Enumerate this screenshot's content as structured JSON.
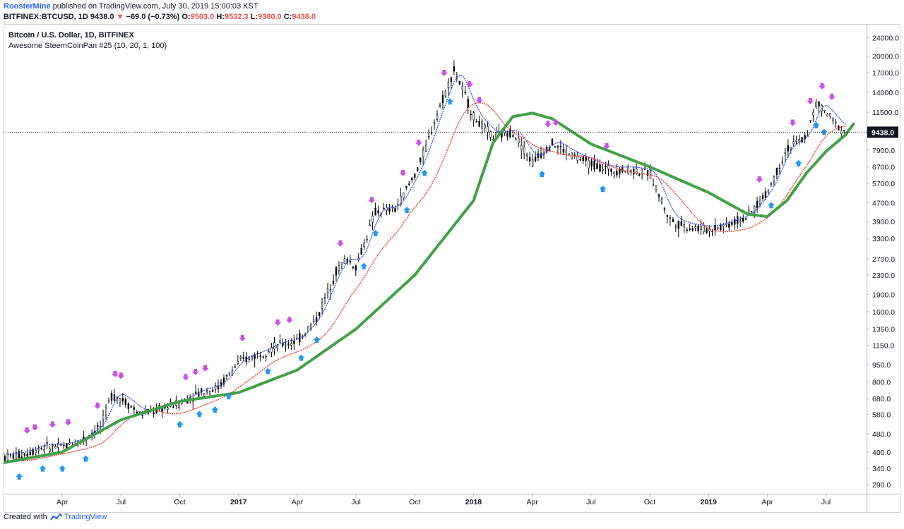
{
  "header": {
    "author": "RoosterMine",
    "published_text": "published on TradingView.com, July 30, 2019 15:00:03 KST",
    "symbol": "BITFINEX:BTCUSD, 1D",
    "last": "9438.0",
    "change": "−69.0 (−0.73%)",
    "open_label": "O:",
    "open": "9503.0",
    "high_label": "H:",
    "high": "9532.3",
    "low_label": "L:",
    "low": "9380.0",
    "close_label": "C:",
    "close": "9438.0"
  },
  "legend": {
    "title": "Bitcoin / U.S. Dollar, 1D, BITFINEX",
    "indicator": "Awesome SteemCoinPan #25 (10, 20, 1, 100)"
  },
  "footer": {
    "created_with": "Created with",
    "brand": "TradingView"
  },
  "colors": {
    "candles": "#000000",
    "blue_line": "#3f51f5",
    "red_line": "#f44336",
    "green_line": "#43a047",
    "buy_arrow": "#2196f3",
    "sell_arrow": "#c850e8",
    "price_line": "#131722",
    "last_price_label_bg": "#131722"
  },
  "chart_data": {
    "type": "line",
    "scale": "log",
    "x_tick_labels": [
      "Apr",
      "Jul",
      "Oct",
      "2017",
      "Apr",
      "Jul",
      "Oct",
      "2018",
      "Apr",
      "Jul",
      "Oct",
      "2019",
      "Apr",
      "Jul"
    ],
    "x_tick_bold": [
      false,
      false,
      false,
      true,
      false,
      false,
      false,
      true,
      false,
      false,
      false,
      true,
      false,
      false
    ],
    "y_tick_labels": [
      "24000.0",
      "20000.0",
      "17000.0",
      "14000.0",
      "11500.0",
      "9438.0",
      "7900.0",
      "6700.0",
      "5700.0",
      "4700.0",
      "3900.0",
      "3300.0",
      "2700.0",
      "2300.0",
      "1900.0",
      "1600.0",
      "1350.0",
      "1150.0",
      "950.0",
      "800.0",
      "680.0",
      "580.0",
      "480.0",
      "400.0",
      "340.0",
      "290.0"
    ],
    "y_tick_values": [
      24000,
      20000,
      17000,
      14000,
      11500,
      9438,
      7900,
      6700,
      5700,
      4700,
      3900,
      3300,
      2700,
      2300,
      1900,
      1600,
      1350,
      1150,
      950,
      800,
      680,
      580,
      480,
      400,
      340,
      290
    ],
    "last_price": 9438.0,
    "ylim": [
      265,
      27500
    ],
    "x_range_months": [
      0,
      44
    ],
    "x_tick_months": [
      3,
      6,
      9,
      12,
      15,
      18,
      21,
      24,
      27,
      30,
      33,
      36,
      39,
      42
    ],
    "price_series_monthly": {
      "x": [
        0,
        1,
        2,
        3,
        4,
        5,
        5.5,
        6,
        7,
        8,
        9,
        10,
        11,
        12,
        13,
        14,
        15,
        16,
        17,
        17.5,
        18,
        19,
        20,
        21,
        21.5,
        22,
        23,
        23.5,
        24,
        25,
        26,
        27,
        28,
        29,
        30,
        31,
        32,
        33,
        34,
        34.5,
        35,
        36,
        37,
        38,
        39,
        40,
        41,
        41.5,
        42,
        42.5,
        43
      ],
      "close": [
        380,
        390,
        420,
        420,
        450,
        520,
        700,
        680,
        580,
        610,
        650,
        720,
        760,
        970,
        1050,
        1150,
        1200,
        1500,
        2400,
        2700,
        2500,
        4300,
        4400,
        6200,
        7800,
        10500,
        17500,
        14000,
        11000,
        9000,
        9500,
        7000,
        8500,
        7500,
        6900,
        6500,
        6500,
        6300,
        4000,
        3800,
        3700,
        3600,
        3800,
        4100,
        5200,
        8000,
        9000,
        12500,
        11500,
        10200,
        9438
      ]
    },
    "series": [
      {
        "name": "Awesome SteemCoinPan #25 (10, 20, 1, 100)",
        "component": "green",
        "x": [
          0,
          3,
          6,
          9,
          12,
          15,
          18,
          21,
          24,
          25,
          26,
          27,
          28,
          30,
          33,
          36,
          38,
          39,
          40,
          41,
          42,
          43,
          43.5
        ],
        "values": [
          360,
          400,
          550,
          660,
          720,
          900,
          1350,
          2300,
          4800,
          8500,
          11000,
          11400,
          10800,
          8400,
          6700,
          5200,
          4200,
          4100,
          4800,
          6300,
          7800,
          9200,
          10500
        ]
      }
    ],
    "sell_signal_months": [
      1.2,
      1.6,
      2.5,
      3.3,
      4.8,
      5.7,
      6.0,
      9.3,
      9.8,
      10.3,
      12.2,
      14.0,
      14.6,
      17.2,
      18.8,
      20.4,
      21.2,
      22.5,
      23.8,
      24.3,
      27.8,
      28.2,
      30.8,
      38.6,
      40.3,
      41.2,
      41.8,
      42.3
    ],
    "buy_signal_months": [
      0.8,
      2.0,
      3.0,
      4.2,
      9.0,
      10.0,
      10.8,
      11.5,
      13.5,
      15.2,
      16.0,
      18.4,
      19.0,
      20.6,
      21.5,
      22.8,
      27.5,
      30.6,
      39.2,
      40.6,
      41.5,
      41.9
    ]
  }
}
